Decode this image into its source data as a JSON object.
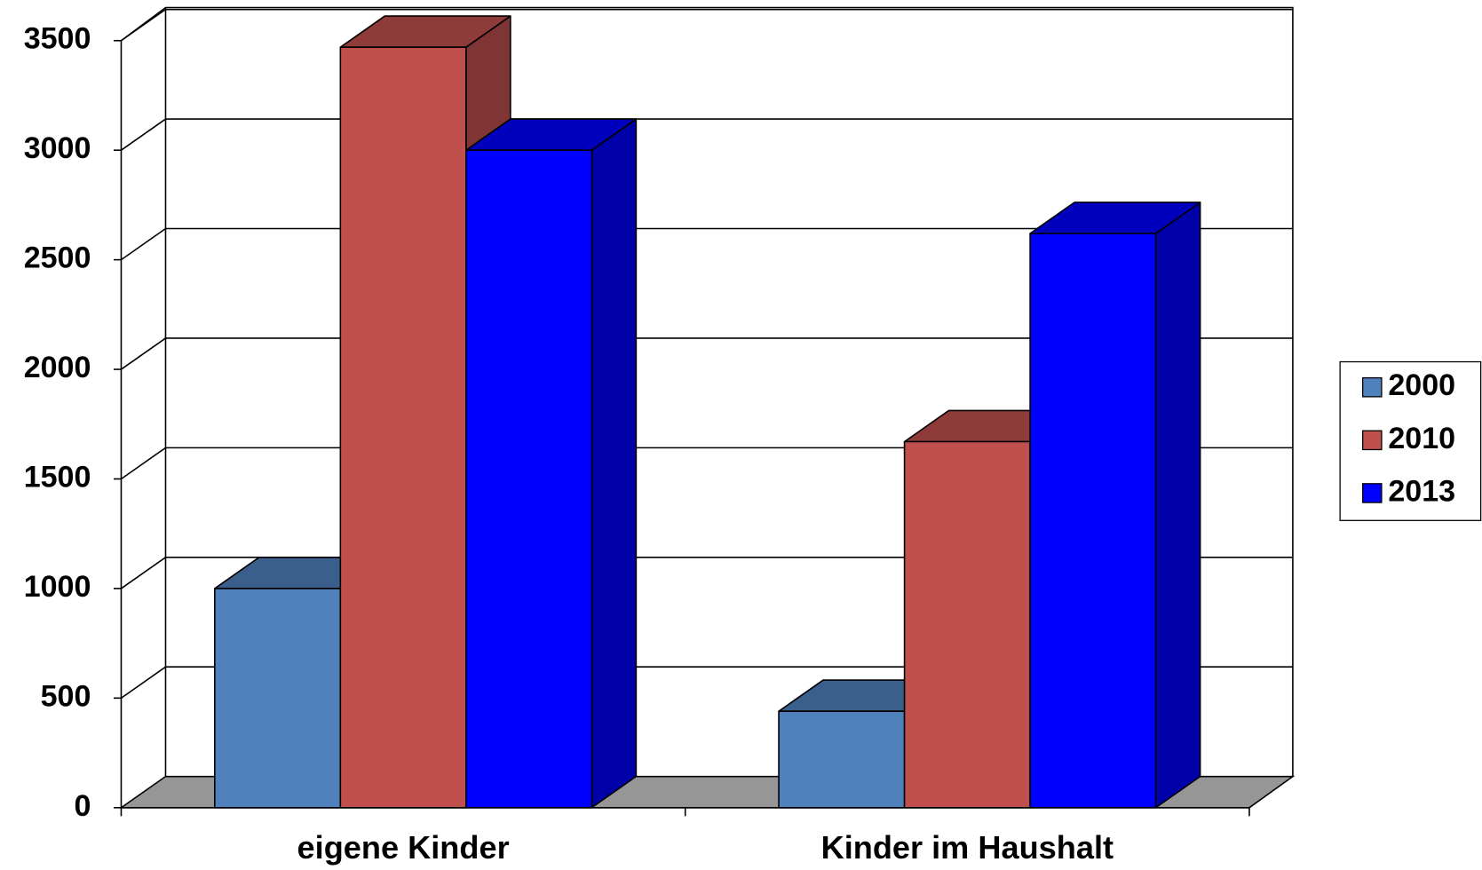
{
  "chart_data": {
    "type": "bar3d",
    "categories": [
      "eigene Kinder",
      "Kinder im Haushalt"
    ],
    "series": [
      {
        "name": "2000",
        "color": "#4f81bd",
        "values": [
          1000,
          440
        ]
      },
      {
        "name": "2010",
        "color": "#c0504d",
        "values": [
          3470,
          1670
        ]
      },
      {
        "name": "2013",
        "color": "#0000ff",
        "values": [
          3000,
          2620
        ]
      }
    ],
    "ylim": [
      0,
      3500
    ],
    "yticks": [
      0,
      500,
      1000,
      1500,
      2000,
      2500,
      3000,
      3500
    ],
    "grid": true,
    "legend": "right"
  }
}
